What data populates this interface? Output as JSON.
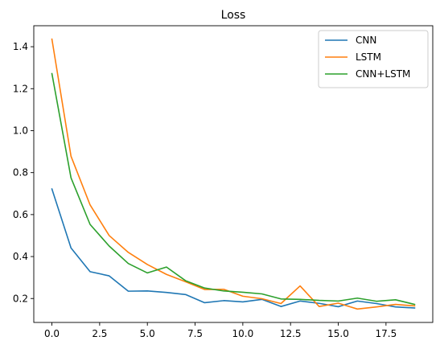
{
  "chart_data": {
    "type": "line",
    "title": "Loss",
    "xlabel": "",
    "ylabel": "",
    "xlim": [
      -0.95,
      19.95
    ],
    "ylim": [
      0.086,
      1.5
    ],
    "x_ticks": [
      0.0,
      2.5,
      5.0,
      7.5,
      10.0,
      12.5,
      15.0,
      17.5
    ],
    "x_tick_labels": [
      "0.0",
      "2.5",
      "5.0",
      "7.5",
      "10.0",
      "12.5",
      "15.0",
      "17.5"
    ],
    "y_ticks": [
      0.2,
      0.4,
      0.6,
      0.8,
      1.0,
      1.2,
      1.4
    ],
    "y_tick_labels": [
      "0.2",
      "0.4",
      "0.6",
      "0.8",
      "1.0",
      "1.2",
      "1.4"
    ],
    "grid": false,
    "legend_position": "top-right",
    "x": [
      0,
      1,
      2,
      3,
      4,
      5,
      6,
      7,
      8,
      9,
      10,
      11,
      12,
      13,
      14,
      15,
      16,
      17,
      18,
      19
    ],
    "series": [
      {
        "name": "CNN",
        "color": "#1f77b4",
        "values": [
          0.722,
          0.441,
          0.328,
          0.308,
          0.235,
          0.236,
          0.229,
          0.219,
          0.18,
          0.19,
          0.184,
          0.196,
          0.162,
          0.188,
          0.177,
          0.161,
          0.188,
          0.176,
          0.16,
          0.155
        ]
      },
      {
        "name": "LSTM",
        "color": "#ff7f0e",
        "values": [
          1.436,
          0.878,
          0.646,
          0.5,
          0.42,
          0.362,
          0.315,
          0.28,
          0.243,
          0.244,
          0.211,
          0.199,
          0.176,
          0.26,
          0.162,
          0.178,
          0.15,
          0.16,
          0.172,
          0.165
        ]
      },
      {
        "name": "CNN+LSTM",
        "color": "#2ca02c",
        "values": [
          1.272,
          0.775,
          0.553,
          0.45,
          0.367,
          0.322,
          0.35,
          0.285,
          0.25,
          0.236,
          0.23,
          0.222,
          0.198,
          0.196,
          0.191,
          0.188,
          0.202,
          0.187,
          0.194,
          0.172
        ]
      }
    ]
  }
}
